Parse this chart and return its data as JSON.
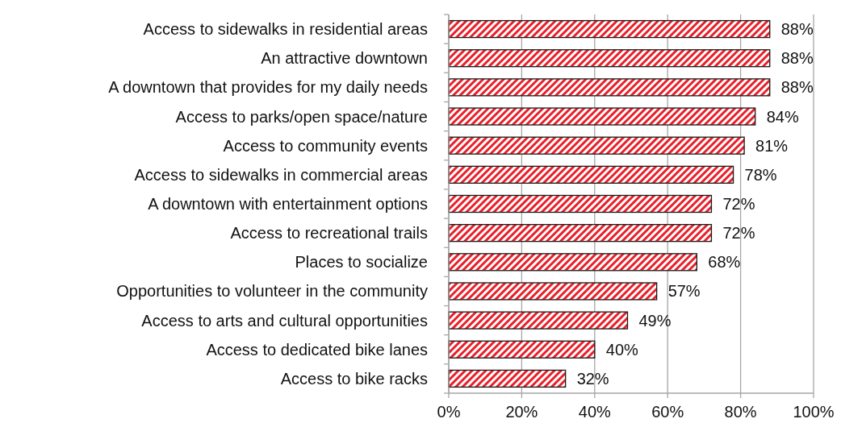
{
  "chart_data": {
    "type": "bar",
    "orientation": "horizontal",
    "categories": [
      "Access to sidewalks in residential areas",
      "An attractive downtown",
      "A downtown that provides for my daily needs",
      "Access to parks/open space/nature",
      "Access to community events",
      "Access to sidewalks in commercial areas",
      "A downtown with entertainment options",
      "Access to recreational trails",
      "Places to socialize",
      "Opportunities to volunteer in the community",
      "Access to arts and cultural opportunities",
      "Access to dedicated bike lanes",
      "Access to bike racks"
    ],
    "values": [
      88,
      88,
      88,
      84,
      81,
      78,
      72,
      72,
      68,
      57,
      49,
      40,
      32
    ],
    "color": "#e8202a",
    "xlim": [
      0,
      100
    ],
    "xticks": [
      {
        "value": 0,
        "label": "0%"
      },
      {
        "value": 20,
        "label": "20%"
      },
      {
        "value": 40,
        "label": "40%"
      },
      {
        "value": 60,
        "label": "60%"
      },
      {
        "value": 80,
        "label": "80%"
      },
      {
        "value": 100,
        "label": "100%"
      }
    ],
    "grid": "x",
    "value_labels": [
      "88%",
      "88%",
      "88%",
      "84%",
      "81%",
      "78%",
      "72%",
      "72%",
      "68%",
      "57%",
      "49%",
      "40%",
      "32%"
    ]
  }
}
